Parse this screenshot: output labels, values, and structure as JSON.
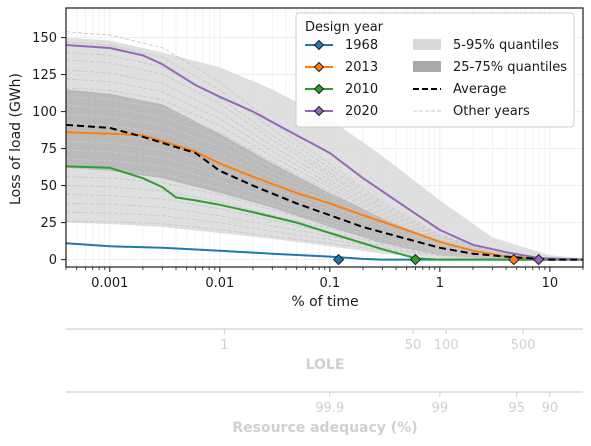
{
  "chart_data": {
    "type": "line",
    "xlabel": "% of time",
    "ylabel": "Loss of load (GWh)",
    "xscale": "log",
    "xlim": [
      0.0004,
      20
    ],
    "ylim": [
      -5,
      170
    ],
    "grid": true,
    "x_ticks": [
      {
        "value": 0.001,
        "label": "0.001"
      },
      {
        "value": 0.01,
        "label": "0.01"
      },
      {
        "value": 0.1,
        "label": "0.1"
      },
      {
        "value": 1,
        "label": "1"
      },
      {
        "value": 10,
        "label": "10"
      }
    ],
    "y_ticks": [
      {
        "value": 0,
        "label": "0"
      },
      {
        "value": 25,
        "label": "25"
      },
      {
        "value": 50,
        "label": "50"
      },
      {
        "value": 75,
        "label": "75"
      },
      {
        "value": 100,
        "label": "100"
      },
      {
        "value": 125,
        "label": "125"
      },
      {
        "value": 150,
        "label": "150"
      }
    ],
    "legend": {
      "title": "Design year",
      "placement": "top-right",
      "series_entries": [
        "1968",
        "2013",
        "2010",
        "2020"
      ],
      "band_entries": [
        "5-95% quantiles",
        "25-75% quantiles"
      ],
      "line_entries": [
        "Average",
        "Other years"
      ]
    },
    "series": [
      {
        "name": "1968",
        "color": "#1f77b4",
        "points": [
          [
            0.0004,
            11
          ],
          [
            0.001,
            9
          ],
          [
            0.003,
            8
          ],
          [
            0.01,
            6
          ],
          [
            0.03,
            4
          ],
          [
            0.1,
            2
          ],
          [
            0.2,
            0.5
          ],
          [
            0.3,
            0
          ],
          [
            20,
            0
          ]
        ],
        "marker": [
          0.12,
          0
        ]
      },
      {
        "name": "2013",
        "color": "#ff7f0e",
        "points": [
          [
            0.0004,
            86
          ],
          [
            0.001,
            85
          ],
          [
            0.002,
            84
          ],
          [
            0.003,
            80
          ],
          [
            0.006,
            73
          ],
          [
            0.01,
            65
          ],
          [
            0.02,
            56
          ],
          [
            0.05,
            45
          ],
          [
            0.1,
            38
          ],
          [
            0.2,
            30
          ],
          [
            0.5,
            20
          ],
          [
            1,
            12
          ],
          [
            2,
            6
          ],
          [
            4,
            2
          ],
          [
            10,
            0
          ],
          [
            20,
            0
          ]
        ],
        "marker": [
          4.7,
          0
        ]
      },
      {
        "name": "2010",
        "color": "#2ca02c",
        "points": [
          [
            0.0004,
            63
          ],
          [
            0.001,
            62
          ],
          [
            0.002,
            55
          ],
          [
            0.003,
            49
          ],
          [
            0.004,
            42
          ],
          [
            0.006,
            40
          ],
          [
            0.01,
            37
          ],
          [
            0.02,
            32
          ],
          [
            0.05,
            25
          ],
          [
            0.1,
            18
          ],
          [
            0.3,
            7
          ],
          [
            0.6,
            1
          ],
          [
            1,
            0
          ],
          [
            20,
            0
          ]
        ],
        "marker": [
          0.6,
          0
        ]
      },
      {
        "name": "2020",
        "color": "#9467bd",
        "points": [
          [
            0.0004,
            145
          ],
          [
            0.001,
            143
          ],
          [
            0.002,
            138
          ],
          [
            0.003,
            132
          ],
          [
            0.006,
            118
          ],
          [
            0.01,
            110
          ],
          [
            0.02,
            100
          ],
          [
            0.05,
            84
          ],
          [
            0.1,
            72
          ],
          [
            0.2,
            55
          ],
          [
            0.5,
            35
          ],
          [
            1,
            20
          ],
          [
            2,
            10
          ],
          [
            4,
            5
          ],
          [
            8,
            1
          ],
          [
            20,
            0
          ]
        ],
        "marker": [
          7.9,
          0
        ]
      },
      {
        "name": "Average",
        "color": "#000000",
        "dashed": true,
        "points": [
          [
            0.0004,
            91
          ],
          [
            0.001,
            89
          ],
          [
            0.002,
            83
          ],
          [
            0.004,
            76
          ],
          [
            0.006,
            72
          ],
          [
            0.01,
            60
          ],
          [
            0.02,
            50
          ],
          [
            0.05,
            38
          ],
          [
            0.1,
            30
          ],
          [
            0.2,
            22
          ],
          [
            0.5,
            14
          ],
          [
            1,
            8
          ],
          [
            2,
            4
          ],
          [
            4,
            2
          ],
          [
            10,
            0
          ],
          [
            20,
            0
          ]
        ]
      }
    ],
    "bands": [
      {
        "name": "5-95% quantiles",
        "color": "#d9d9d9",
        "points": [
          [
            0.0004,
            25,
            150
          ],
          [
            0.001,
            24,
            148
          ],
          [
            0.003,
            22,
            140
          ],
          [
            0.01,
            18,
            130
          ],
          [
            0.03,
            14,
            115
          ],
          [
            0.1,
            9,
            95
          ],
          [
            0.3,
            4,
            70
          ],
          [
            1,
            1,
            40
          ],
          [
            3,
            0,
            15
          ],
          [
            10,
            0,
            3
          ],
          [
            20,
            0,
            1
          ]
        ]
      },
      {
        "name": "25-75% quantiles",
        "color": "#a9a9a9",
        "points": [
          [
            0.0004,
            62,
            115
          ],
          [
            0.001,
            60,
            112
          ],
          [
            0.003,
            55,
            105
          ],
          [
            0.01,
            45,
            85
          ],
          [
            0.03,
            35,
            65
          ],
          [
            0.1,
            22,
            45
          ],
          [
            0.3,
            11,
            28
          ],
          [
            1,
            3,
            12
          ],
          [
            3,
            0.5,
            4
          ],
          [
            10,
            0,
            0.5
          ],
          [
            20,
            0,
            0
          ]
        ]
      }
    ],
    "other_years": {
      "name": "Other years",
      "color": "#c8c8c8",
      "top_values": [
        154,
        147,
        140,
        135,
        128,
        122,
        116,
        110,
        104,
        98,
        92,
        86,
        80,
        74,
        68,
        62,
        56,
        50,
        44,
        38,
        32,
        26
      ]
    },
    "secondary_axes": [
      {
        "title": "LOLE",
        "ticks": [
          {
            "value": 0.011,
            "label": "1"
          },
          {
            "value": 0.57,
            "label": "50"
          },
          {
            "value": 1.14,
            "label": "100"
          },
          {
            "value": 5.7,
            "label": "500"
          }
        ]
      },
      {
        "title": "Resource adequacy (%)",
        "ticks": [
          {
            "value": 0.1,
            "label": "99.9"
          },
          {
            "value": 1,
            "label": "99"
          },
          {
            "value": 5,
            "label": "95"
          },
          {
            "value": 10,
            "label": "90"
          }
        ]
      }
    ]
  }
}
